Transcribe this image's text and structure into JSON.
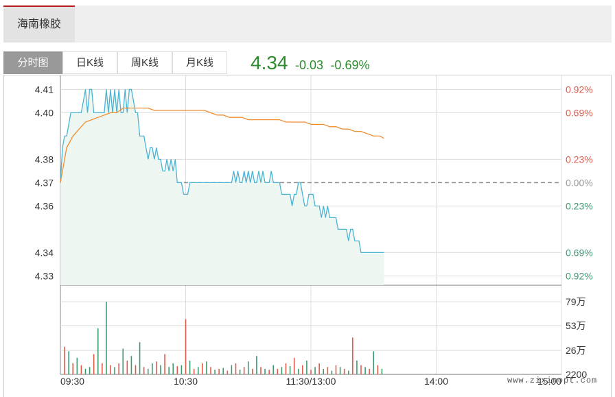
{
  "stock": {
    "name": "海南橡胶"
  },
  "tabs": [
    {
      "label": "分时图",
      "active": true
    },
    {
      "label": "日K线",
      "active": false
    },
    {
      "label": "周K线",
      "active": false
    },
    {
      "label": "月K线",
      "active": false
    }
  ],
  "quote": {
    "price": "4.34",
    "change": "-0.03",
    "change_pct": "-0.69%"
  },
  "colors": {
    "up": "#e05a4b",
    "down": "#3d9970",
    "flat": "#999999",
    "price_line": "#4ab3d4",
    "avg_line": "#f08c2e",
    "area_fill": "#eef6f1",
    "grid": "#dddddd",
    "prev_close_line": "#888888"
  },
  "chart_data": {
    "type": "line",
    "prev_close": 4.37,
    "x_ticks": [
      "09:30",
      "10:30",
      "11:30/13:00",
      "14:00",
      "15:00"
    ],
    "price_ticks": [
      "4.41",
      "4.40",
      "4.38",
      "4.37",
      "4.36",
      "4.34",
      "4.33"
    ],
    "pct_ticks": [
      "0.92%",
      "0.69%",
      "0.23%",
      "0.00%",
      "0.23%",
      "0.69%",
      "0.92%"
    ],
    "volume_ticks": [
      "79万",
      "53万",
      "26万",
      "2200"
    ],
    "price_series": {
      "minutes": [
        0,
        1,
        2,
        3,
        4,
        5,
        6,
        7,
        8,
        9,
        10,
        11,
        12,
        13,
        14,
        15,
        16,
        17,
        18,
        19,
        20,
        21,
        22,
        23,
        24,
        25,
        26,
        27,
        28,
        29,
        30,
        31,
        32,
        33,
        34,
        35,
        36,
        37,
        38,
        39,
        40,
        41,
        42,
        43,
        44,
        45,
        46,
        47,
        48,
        49,
        50,
        51,
        52,
        53,
        54,
        55,
        56,
        57,
        58,
        59,
        60,
        61,
        62,
        63,
        64,
        65,
        66,
        67,
        68,
        69,
        70,
        71,
        72,
        73,
        74,
        75,
        76,
        77,
        78,
        79,
        80,
        81,
        82,
        83,
        84,
        85,
        86,
        87,
        88,
        89,
        90,
        91,
        92,
        93,
        94,
        95,
        96,
        97,
        98,
        99,
        100,
        101,
        102,
        103,
        104,
        105,
        106,
        107,
        108,
        109,
        110,
        111,
        112,
        113,
        114,
        115,
        116,
        117,
        118,
        119,
        120,
        121,
        122,
        123,
        124,
        125,
        126,
        127,
        128,
        129,
        130,
        131,
        132,
        133,
        134,
        135,
        136,
        137,
        138,
        139,
        140,
        141,
        142,
        143,
        144,
        145,
        146,
        147,
        148,
        149,
        150,
        151,
        152,
        153,
        154,
        155
      ],
      "values": [
        4.37,
        4.385,
        4.39,
        4.39,
        4.395,
        4.4,
        4.4,
        4.4,
        4.4,
        4.4,
        4.4,
        4.405,
        4.41,
        4.4,
        4.41,
        4.41,
        4.4,
        4.4,
        4.4,
        4.4,
        4.4,
        4.4,
        4.41,
        4.4,
        4.41,
        4.4,
        4.41,
        4.4,
        4.41,
        4.4,
        4.4,
        4.41,
        4.4,
        4.41,
        4.41,
        4.405,
        4.4,
        4.4,
        4.39,
        4.39,
        4.39,
        4.385,
        4.38,
        4.385,
        4.385,
        4.38,
        4.385,
        4.38,
        4.38,
        4.375,
        4.375,
        4.38,
        4.375,
        4.38,
        4.375,
        4.38,
        4.37,
        4.37,
        4.37,
        4.365,
        4.365,
        4.365,
        4.37,
        4.37,
        4.37,
        4.37,
        4.37,
        4.37,
        4.37,
        4.37,
        4.37,
        4.37,
        4.37,
        4.37,
        4.37,
        4.37,
        4.37,
        4.37,
        4.37,
        4.37,
        4.37,
        4.37,
        4.37,
        4.375,
        4.37,
        4.375,
        4.37,
        4.37,
        4.375,
        4.37,
        4.375,
        4.37,
        4.375,
        4.37,
        4.37,
        4.375,
        4.37,
        4.375,
        4.37,
        4.37,
        4.37,
        4.375,
        4.37,
        4.37,
        4.37,
        4.37,
        4.365,
        4.365,
        4.365,
        4.365,
        4.365,
        4.36,
        4.365,
        4.365,
        4.37,
        4.37,
        4.365,
        4.36,
        4.36,
        4.365,
        4.365,
        4.365,
        4.36,
        4.36,
        4.36,
        4.355,
        4.36,
        4.355,
        4.36,
        4.355,
        4.355,
        4.355,
        4.355,
        4.35,
        4.35,
        4.35,
        4.35,
        4.35,
        4.345,
        4.35,
        4.35,
        4.345,
        4.345,
        4.345,
        4.34,
        4.34,
        4.34,
        4.34,
        4.34,
        4.34,
        4.34,
        4.34,
        4.34,
        4.34,
        4.34,
        4.34,
        4.34,
        4.34
      ]
    },
    "avg_series": {
      "minutes": [
        0,
        3,
        6,
        9,
        12,
        15,
        18,
        21,
        24,
        27,
        30,
        33,
        36,
        39,
        42,
        45,
        48,
        51,
        54,
        57,
        60,
        63,
        66,
        69,
        72,
        75,
        78,
        81,
        84,
        87,
        90,
        93,
        96,
        99,
        102,
        105,
        108,
        111,
        114,
        117,
        120,
        123,
        126,
        129,
        132,
        135,
        138,
        141,
        144,
        147,
        150,
        153,
        155
      ],
      "values": [
        4.37,
        4.385,
        4.39,
        4.393,
        4.396,
        4.397,
        4.398,
        4.399,
        4.4,
        4.4,
        4.402,
        4.402,
        4.402,
        4.402,
        4.402,
        4.401,
        4.401,
        4.401,
        4.401,
        4.401,
        4.401,
        4.401,
        4.401,
        4.401,
        4.4,
        4.399,
        4.399,
        4.398,
        4.398,
        4.398,
        4.397,
        4.397,
        4.397,
        4.397,
        4.397,
        4.397,
        4.396,
        4.396,
        4.396,
        4.396,
        4.395,
        4.395,
        4.395,
        4.394,
        4.394,
        4.393,
        4.393,
        4.392,
        4.392,
        4.391,
        4.39,
        4.39,
        4.389
      ]
    },
    "volume_series": {
      "minutes": [
        2,
        4,
        6,
        8,
        10,
        12,
        14,
        16,
        18,
        20,
        22,
        24,
        26,
        28,
        30,
        32,
        34,
        36,
        38,
        40,
        42,
        44,
        46,
        48,
        50,
        52,
        54,
        56,
        58,
        60,
        62,
        64,
        66,
        68,
        70,
        72,
        74,
        76,
        78,
        80,
        82,
        84,
        86,
        88,
        90,
        92,
        94,
        96,
        98,
        100,
        102,
        104,
        106,
        108,
        110,
        112,
        114,
        116,
        118,
        120,
        122,
        124,
        126,
        128,
        130,
        132,
        134,
        136,
        138,
        140,
        142,
        144,
        146,
        148,
        150,
        152,
        154
      ],
      "values": [
        30,
        25,
        12,
        18,
        10,
        6,
        8,
        22,
        50,
        12,
        79,
        10,
        8,
        12,
        28,
        15,
        20,
        10,
        35,
        8,
        6,
        12,
        14,
        10,
        22,
        8,
        12,
        9,
        10,
        60,
        15,
        6,
        8,
        12,
        14,
        8,
        5,
        6,
        7,
        4,
        10,
        12,
        5,
        8,
        14,
        6,
        20,
        8,
        6,
        5,
        10,
        6,
        8,
        12,
        9,
        18,
        6,
        10,
        15,
        5,
        8,
        12,
        6,
        8,
        4,
        10,
        8,
        6,
        4,
        40,
        15,
        10,
        8,
        6,
        25,
        10,
        6
      ],
      "up": [
        true,
        false,
        true,
        false,
        true,
        false,
        false,
        true,
        false,
        true,
        false,
        true,
        false,
        true,
        false,
        true,
        false,
        true,
        false,
        true,
        false,
        false,
        true,
        false,
        true,
        false,
        false,
        true,
        false,
        true,
        false,
        true,
        false,
        true,
        false,
        true,
        false,
        true,
        false,
        true,
        false,
        true,
        false,
        true,
        false,
        true,
        false,
        true,
        false,
        true,
        false,
        true,
        false,
        true,
        false,
        true,
        false,
        true,
        false,
        true,
        false,
        true,
        false,
        true,
        false,
        true,
        false,
        true,
        false,
        true,
        false,
        true,
        false,
        true,
        false,
        true,
        false
      ]
    }
  },
  "watermark": {
    "text": "www.zixinopt.com"
  }
}
